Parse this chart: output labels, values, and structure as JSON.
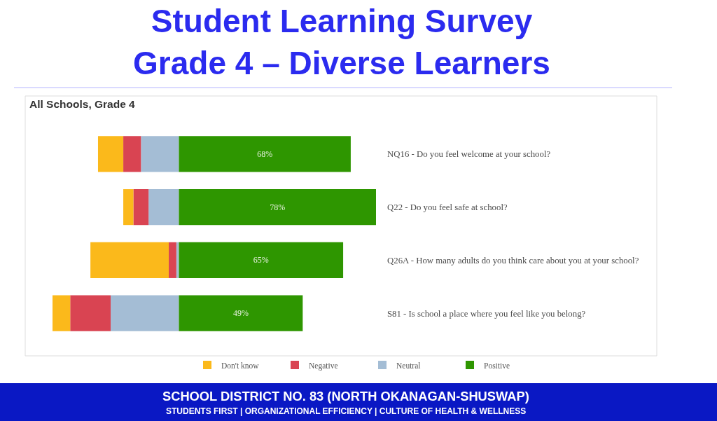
{
  "chart_data": {
    "type": "bar",
    "orientation": "horizontal",
    "stacked": true,
    "title": "Student Learning Survey\nGrade 4 – Diverse Learners",
    "subtitle": "All Schools, Grade 4",
    "categories": [
      "NQ16 - Do you feel welcome at your school?",
      "Q22 - Do you feel safe at school?",
      "Q26A - How many adults do you think care about you at your school?",
      "S81 - Is school a place where you feel like you belong?"
    ],
    "series": [
      {
        "name": "Neutral",
        "color": "#a4bdd5",
        "values": [
          -15,
          -12,
          -1,
          -27
        ]
      },
      {
        "name": "Negative",
        "color": "#d94452",
        "values": [
          -7,
          -6,
          -3,
          -16
        ]
      },
      {
        "name": "Don't know",
        "color": "#fbb91b",
        "values": [
          -10,
          -4,
          -31,
          -7
        ]
      },
      {
        "name": "Positive",
        "color": "#2e9600",
        "values": [
          68,
          78,
          65,
          49
        ],
        "value_labels": [
          "68%",
          "78%",
          "65%",
          "49%"
        ]
      }
    ],
    "xlim": [
      -50,
      78
    ],
    "tick_labels": "y",
    "legend": "bottom",
    "annotations": [
      "SCHOOL DISTRICT NO. 83 (NORTH OKANAGAN-SHUSWAP)",
      "STUDENTS FIRST | ORGANIZATIONAL EFFICIENCY | CULTURE OF HEALTH & WELLNESS"
    ]
  }
}
